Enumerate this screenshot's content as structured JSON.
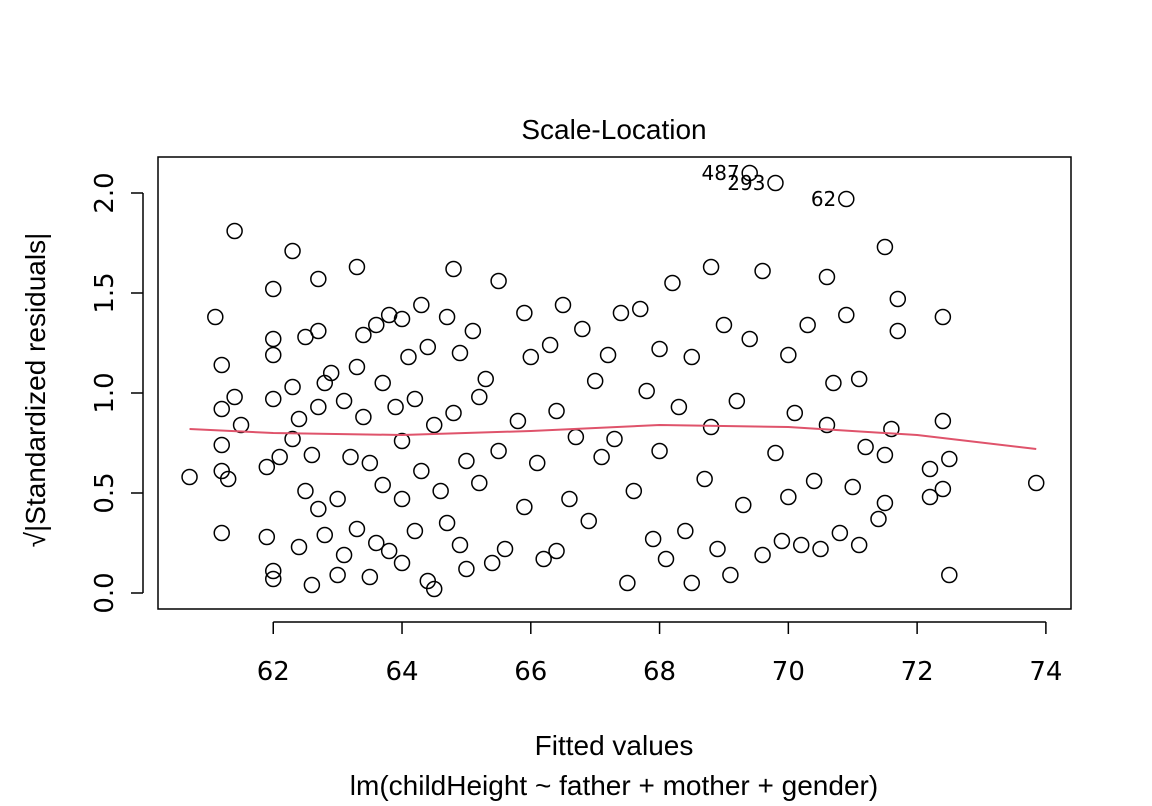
{
  "chart_data": {
    "type": "scatter",
    "title": "Scale-Location",
    "xlabel": "Fitted values",
    "ylabel": "√|Standardized residuals|",
    "subtitle": "lm(childHeight ~ father + mother + gender)",
    "xlim": [
      60.21,
      74.39
    ],
    "ylim": [
      -0.08,
      2.18
    ],
    "xticks": [
      62,
      64,
      66,
      68,
      70,
      72,
      74
    ],
    "yticks": [
      {
        "value": 0,
        "label": "0.0"
      },
      0.5,
      {
        "value": 1,
        "label": "1.0"
      },
      1.5,
      {
        "value": 2,
        "label": "2.0"
      }
    ],
    "point_color": "#000000",
    "x": [
      60.7,
      61.2,
      61.1,
      61.2,
      61.2,
      61.2,
      61.2,
      61.3,
      61.4,
      61.4,
      61.5,
      61.9,
      61.9,
      62.0,
      62.0,
      62.0,
      62.0,
      62.0,
      62.0,
      62.1,
      62.3,
      62.3,
      62.3,
      62.4,
      62.4,
      62.5,
      62.5,
      62.6,
      62.6,
      62.7,
      62.7,
      62.7,
      62.7,
      62.8,
      62.8,
      62.9,
      63.0,
      63.0,
      63.1,
      63.1,
      63.2,
      63.3,
      63.3,
      63.3,
      63.4,
      63.4,
      63.5,
      63.5,
      63.6,
      63.6,
      63.7,
      63.7,
      63.8,
      63.8,
      63.9,
      64.0,
      64.0,
      64.0,
      64.0,
      64.1,
      64.2,
      64.2,
      64.3,
      64.3,
      64.4,
      64.4,
      64.5,
      64.5,
      64.6,
      64.7,
      64.7,
      64.8,
      64.8,
      64.9,
      64.9,
      65.0,
      65.0,
      65.1,
      65.2,
      65.2,
      65.3,
      65.4,
      65.5,
      65.5,
      65.6,
      65.8,
      65.9,
      65.9,
      66.0,
      66.1,
      66.2,
      66.3,
      66.4,
      66.4,
      66.5,
      66.6,
      66.7,
      66.8,
      66.9,
      67.0,
      67.1,
      67.2,
      67.3,
      67.4,
      67.5,
      67.6,
      67.7,
      67.8,
      67.9,
      68.0,
      68.0,
      68.1,
      68.2,
      68.3,
      68.4,
      68.5,
      68.5,
      68.7,
      68.8,
      68.8,
      68.9,
      69.0,
      69.1,
      69.2,
      69.3,
      69.4,
      69.6,
      69.6,
      69.8,
      69.9,
      70.0,
      70.0,
      70.1,
      70.2,
      70.3,
      70.4,
      70.5,
      70.6,
      70.6,
      70.7,
      70.8,
      70.9,
      71.0,
      71.1,
      71.1,
      71.2,
      71.4,
      71.5,
      71.5,
      71.5,
      71.6,
      71.7,
      71.7,
      72.2,
      72.2,
      72.4,
      72.4,
      72.4,
      72.5,
      72.5,
      73.85
    ],
    "y": [
      0.58,
      0.3,
      1.38,
      1.14,
      0.92,
      0.61,
      0.74,
      0.57,
      1.81,
      0.98,
      0.84,
      0.28,
      0.63,
      0.11,
      0.07,
      1.52,
      1.27,
      1.19,
      0.97,
      0.68,
      1.71,
      1.03,
      0.77,
      0.23,
      0.87,
      1.28,
      0.51,
      0.04,
      0.69,
      0.42,
      1.57,
      1.31,
      0.93,
      1.05,
      0.29,
      1.1,
      0.47,
      0.09,
      0.19,
      0.96,
      0.68,
      1.63,
      1.13,
      0.32,
      1.29,
      0.88,
      0.08,
      0.65,
      0.25,
      1.34,
      1.05,
      0.54,
      1.39,
      0.21,
      0.93,
      1.37,
      0.15,
      0.76,
      0.47,
      1.18,
      0.31,
      0.97,
      1.44,
      0.61,
      0.06,
      1.23,
      0.02,
      0.84,
      0.51,
      1.38,
      0.35,
      1.62,
      0.9,
      1.2,
      0.24,
      0.66,
      0.12,
      1.31,
      0.98,
      0.55,
      1.07,
      0.15,
      0.71,
      1.56,
      0.22,
      0.86,
      1.4,
      0.43,
      1.18,
      0.65,
      0.17,
      1.24,
      0.91,
      0.21,
      1.44,
      0.47,
      0.78,
      1.32,
      0.36,
      1.06,
      0.68,
      1.19,
      0.77,
      1.4,
      0.05,
      0.51,
      1.42,
      1.01,
      0.27,
      0.71,
      1.22,
      0.17,
      1.55,
      0.93,
      0.31,
      1.18,
      0.05,
      0.57,
      1.63,
      0.83,
      0.22,
      1.34,
      0.09,
      0.96,
      0.44,
      1.27,
      0.19,
      1.61,
      0.7,
      0.26,
      1.19,
      0.48,
      0.9,
      0.24,
      1.34,
      0.56,
      0.22,
      1.58,
      0.84,
      1.05,
      0.3,
      1.39,
      0.53,
      0.24,
      1.07,
      0.73,
      0.37,
      1.73,
      0.69,
      0.45,
      0.82,
      1.47,
      1.31,
      0.48,
      0.62,
      1.38,
      0.86,
      0.52,
      0.09,
      0.67,
      0.55
    ],
    "point_labels": [
      {
        "label": "487",
        "x": 69.4,
        "y": 2.1
      },
      {
        "label": "293",
        "x": 69.8,
        "y": 2.05
      },
      {
        "label": "62",
        "x": 70.9,
        "y": 1.97
      }
    ],
    "smooth": {
      "color": "#df536b",
      "x": [
        60.7,
        62,
        64,
        66,
        68,
        70,
        72,
        73.85
      ],
      "y": [
        0.82,
        0.8,
        0.79,
        0.81,
        0.84,
        0.83,
        0.79,
        0.72
      ]
    }
  }
}
